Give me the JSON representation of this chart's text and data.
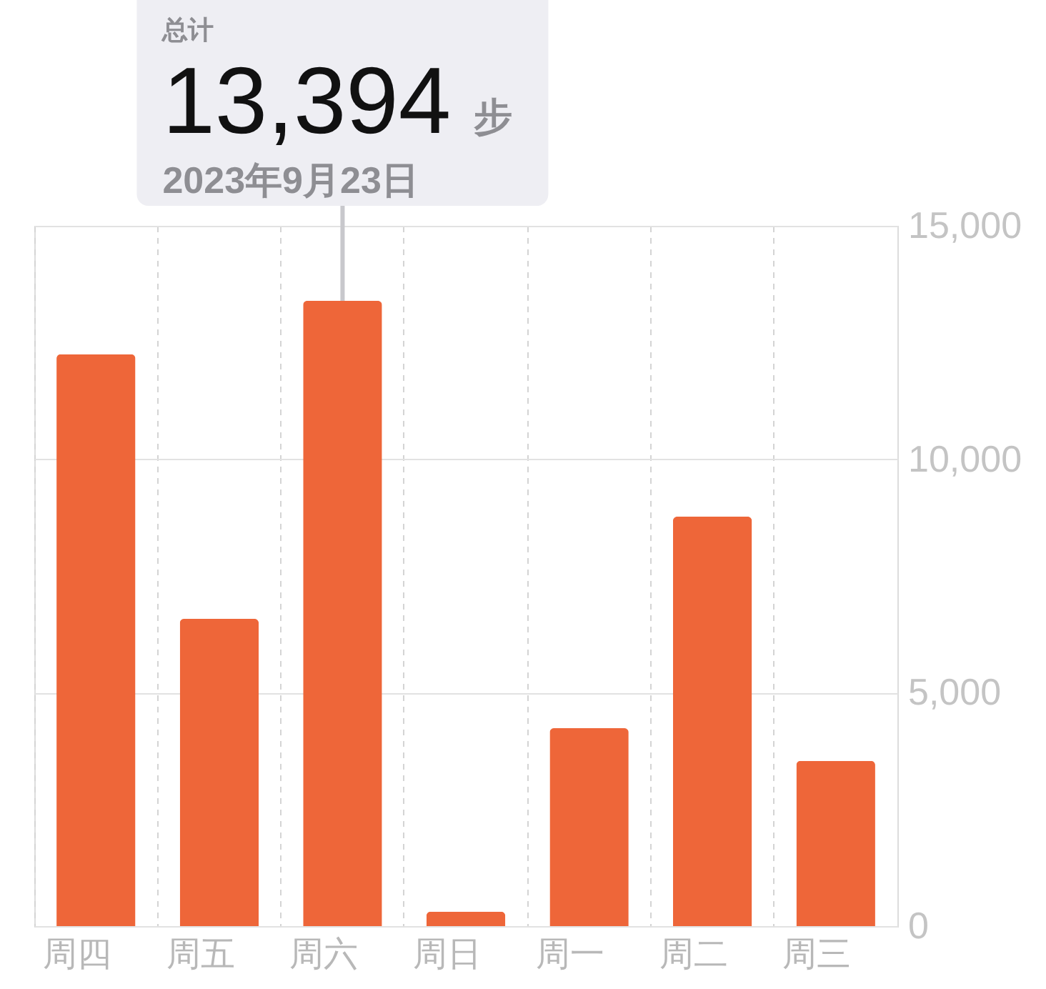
{
  "chart_data": {
    "type": "bar",
    "categories": [
      "周四",
      "周五",
      "周六",
      "周日",
      "周一",
      "周二",
      "周三"
    ],
    "values": [
      12250,
      6580,
      13394,
      310,
      4240,
      8770,
      3540
    ],
    "color": "#ee6639",
    "ylim": [
      0,
      15000
    ],
    "yticks": [
      0,
      {
        "value": 5000,
        "label": "5,000"
      },
      {
        "value": 10000,
        "label": "10,000"
      },
      {
        "value": 15000,
        "label": "15,000"
      }
    ],
    "grid": true,
    "annotations": [
      "总计",
      {
        "text": "13,394 步",
        "x": "周六",
        "y": 13394
      },
      {
        "text": "2023年9月23日",
        "x": "周六",
        "y": 13394
      }
    ]
  }
}
